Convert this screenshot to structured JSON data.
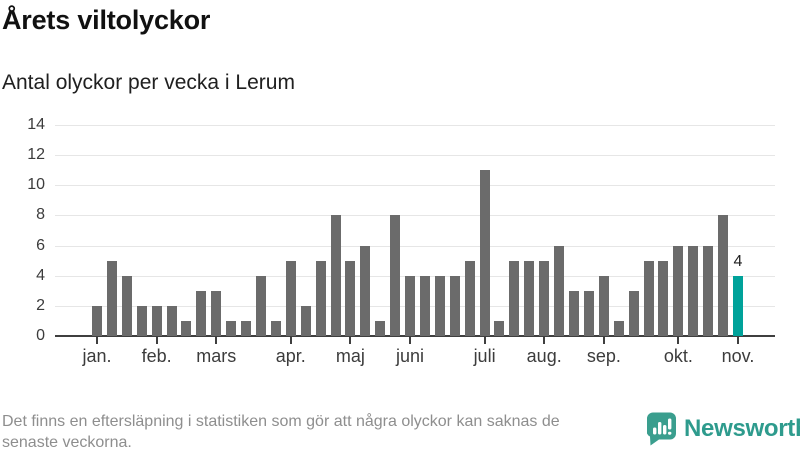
{
  "header": {
    "title": "Årets viltolyckor",
    "subtitle": "Antal olyckor per vecka i Lerum"
  },
  "footer": {
    "note_line1": "Det finns en eftersläpning i statistiken som gör att några olyckor kan saknas de",
    "note_line2": "senaste veckorna.",
    "brand": "Newsworthy"
  },
  "colors": {
    "bar": "#6b6b6b",
    "highlight": "#00a29a",
    "gridline": "#e6e6e6",
    "axis": "#3f3f3f",
    "axis_text": "#3c3c3c",
    "brand_teal": "#2e9b8d"
  },
  "chart_data": {
    "type": "bar",
    "title": "Årets viltolyckor",
    "subtitle": "Antal olyckor per vecka i Lerum",
    "x_unit": "vecka",
    "values": [
      2,
      5,
      4,
      2,
      2,
      2,
      1,
      3,
      3,
      1,
      1,
      4,
      1,
      5,
      2,
      5,
      8,
      5,
      6,
      1,
      8,
      4,
      4,
      4,
      4,
      5,
      11,
      1,
      5,
      5,
      5,
      6,
      3,
      3,
      4,
      1,
      3,
      5,
      5,
      6,
      6,
      6,
      8,
      4
    ],
    "month_ticks": [
      {
        "label": "jan.",
        "week_index": 0
      },
      {
        "label": "feb.",
        "week_index": 4
      },
      {
        "label": "mars",
        "week_index": 8
      },
      {
        "label": "apr.",
        "week_index": 13
      },
      {
        "label": "maj",
        "week_index": 17
      },
      {
        "label": "juni",
        "week_index": 21
      },
      {
        "label": "juli",
        "week_index": 26
      },
      {
        "label": "aug.",
        "week_index": 30
      },
      {
        "label": "sep.",
        "week_index": 34
      },
      {
        "label": "okt.",
        "week_index": 39
      },
      {
        "label": "nov.",
        "week_index": 43
      }
    ],
    "y_ticks": [
      0,
      2,
      4,
      6,
      8,
      10,
      12,
      14
    ],
    "ylim": [
      0,
      14
    ],
    "grid": true,
    "legend": "none",
    "highlight_last_bar": true,
    "last_bar_label": "4"
  }
}
